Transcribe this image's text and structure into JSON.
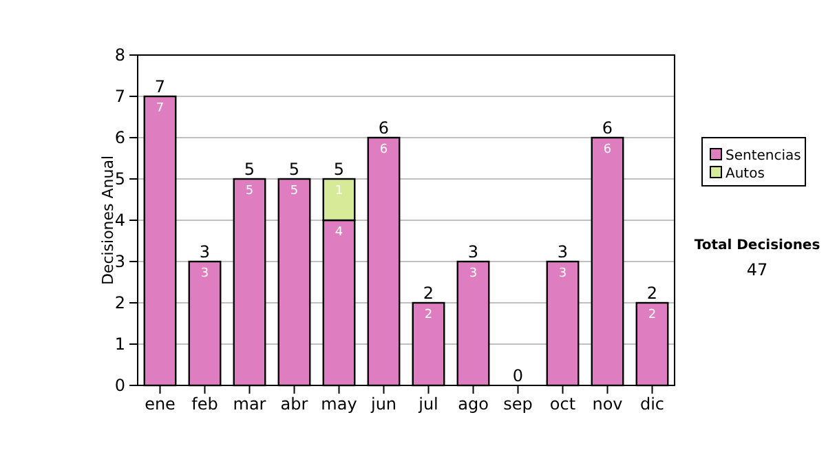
{
  "chart_data": {
    "type": "bar",
    "ylabel": "Decisiones Anual",
    "categories": [
      "ene",
      "feb",
      "mar",
      "abr",
      "may",
      "jun",
      "jul",
      "ago",
      "sep",
      "oct",
      "nov",
      "dic"
    ],
    "stacked": true,
    "series": [
      {
        "name": "Sentencias",
        "color": "#de7ec0",
        "values": [
          7,
          3,
          5,
          5,
          4,
          6,
          2,
          3,
          0,
          3,
          6,
          2
        ],
        "value_labels": [
          "7",
          "3",
          "5",
          "5",
          "4",
          "6",
          "2",
          "3",
          null,
          "3",
          "6",
          "2"
        ]
      },
      {
        "name": "Autos",
        "color": "#d6ea98",
        "values": [
          0,
          0,
          0,
          0,
          1,
          0,
          0,
          0,
          0,
          0,
          0,
          0
        ],
        "value_labels": [
          null,
          null,
          null,
          null,
          "1",
          null,
          null,
          null,
          null,
          null,
          null,
          null
        ]
      }
    ],
    "totals": [
      "7",
      "3",
      "5",
      "5",
      "5",
      "6",
      "2",
      "3",
      "0",
      "3",
      "6",
      "2"
    ],
    "ylim": [
      0,
      8
    ],
    "yticks": [
      0,
      1,
      2,
      3,
      4,
      5,
      6,
      7,
      8
    ],
    "grid": "y",
    "legend": "right",
    "annotations": [
      "Total Decisiones",
      "47"
    ]
  }
}
